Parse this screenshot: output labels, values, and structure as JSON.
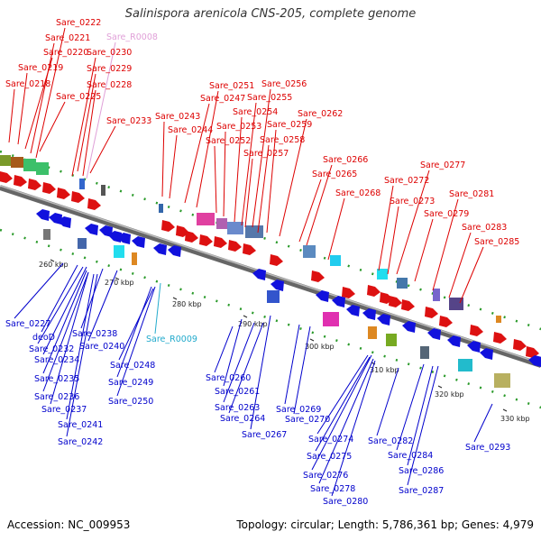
{
  "title": "Salinispora arenicola CNS-205, complete genome",
  "footer": {
    "accession": "Accession: NC_009953",
    "stats": "Topology: circular; Length: 5,786,361 bp; Genes: 4,979"
  },
  "colors": {
    "forward_gene": "#dd1111",
    "reverse_gene": "#1111dd",
    "forward_label": "#dd0000",
    "reverse_label": "#0000cc",
    "rna_forward": "#e0a0d8",
    "rna_reverse": "#22aacc",
    "backbone": "#888888"
  },
  "scale_ticks": [
    "260 kbp",
    "270 kbp",
    "280 kbp",
    "290 kbp",
    "300 kbp",
    "310 kbp",
    "320 kbp",
    "330 kbp"
  ],
  "forward_labels": [
    "Sare_0222",
    "Sare_0221",
    "Sare_R0008",
    "Sare_0220",
    "Sare_0230",
    "Sare_0219",
    "Sare_0229",
    "Sare_0218",
    "Sare_0228",
    "Sare_0225",
    "Sare_0233",
    "Sare_0251",
    "Sare_0256",
    "Sare_0247",
    "Sare_0255",
    "Sare_0243",
    "Sare_0254",
    "Sare_0262",
    "Sare_0253",
    "Sare_0259",
    "Sare_0244",
    "Sare_0252",
    "Sare_0258",
    "Sare_0257",
    "Sare_0266",
    "Sare_0265",
    "Sare_0277",
    "Sare_0272",
    "Sare_0268",
    "Sare_0273",
    "Sare_0281",
    "Sare_0279",
    "Sare_0283",
    "Sare_0285"
  ],
  "reverse_labels": [
    "Sare_0227",
    "deoD",
    "Sare_0238",
    "Sare_0232",
    "Sare_R0009",
    "Sare_0240",
    "Sare_0234",
    "Sare_0248",
    "Sare_0235",
    "Sare_0260",
    "Sare_0249",
    "Sare_0236",
    "Sare_0261",
    "Sare_0250",
    "Sare_0237",
    "Sare_0263",
    "Sare_0269",
    "Sare_0264",
    "Sare_0270",
    "Sare_0241",
    "Sare_0267",
    "Sare_0274",
    "Sare_0282",
    "Sare_0242",
    "Sare_0293",
    "Sare_0275",
    "Sare_0284",
    "Sare_0276",
    "Sare_0286",
    "Sare_0278",
    "Sare_0287",
    "Sare_0280"
  ]
}
